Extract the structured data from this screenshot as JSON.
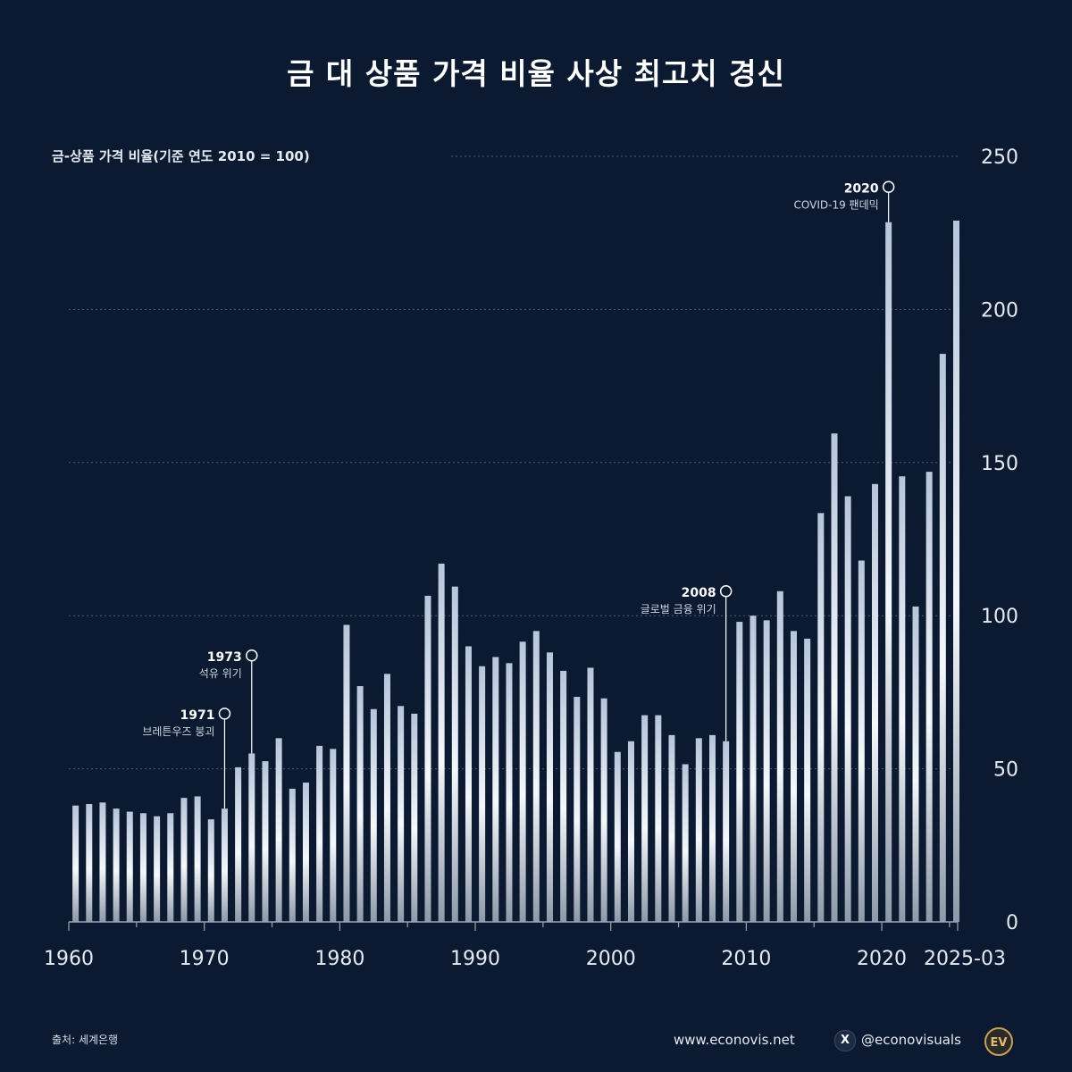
{
  "title": "금 대 상품 가격 비율 사상 최고치 경신",
  "footer": {
    "source": "출처: 세계은행",
    "site": "www.econovis.net",
    "x_icon": "X",
    "handle": "@econovisuals",
    "logo": "EV"
  },
  "colors": {
    "background": "#0b1a31",
    "bar_top": "#b9c7dc",
    "bar_mid": "#f4f7fb",
    "bar_bottom": "#8e99a8",
    "gridline": "#4b5a72",
    "axis": "#9aa4b4"
  },
  "chart_data": {
    "type": "bar",
    "ylabel": "금-상품 가격 비율(기준 연도 2010 = 100)",
    "ylim": [
      0,
      250
    ],
    "yticks": [
      "0",
      "50",
      "100",
      "150",
      "200",
      "250"
    ],
    "xticks": [
      "1960",
      "1970",
      "1980",
      "1990",
      "2000",
      "2010",
      "2020",
      "2025-03"
    ],
    "grid": true,
    "categories": [
      "1960",
      "1961",
      "1962",
      "1963",
      "1964",
      "1965",
      "1966",
      "1967",
      "1968",
      "1969",
      "1970",
      "1971",
      "1972",
      "1973",
      "1974",
      "1975",
      "1976",
      "1977",
      "1978",
      "1979",
      "1980",
      "1981",
      "1982",
      "1983",
      "1984",
      "1985",
      "1986",
      "1987",
      "1988",
      "1989",
      "1990",
      "1991",
      "1992",
      "1993",
      "1994",
      "1995",
      "1996",
      "1997",
      "1998",
      "1999",
      "2000",
      "2001",
      "2002",
      "2003",
      "2004",
      "2005",
      "2006",
      "2007",
      "2008",
      "2009",
      "2010",
      "2011",
      "2012",
      "2013",
      "2014",
      "2015",
      "2016",
      "2017",
      "2018",
      "2019",
      "2020",
      "2021",
      "2022",
      "2023",
      "2024",
      "2025-03"
    ],
    "values": [
      38,
      38.5,
      39,
      37,
      36,
      35.5,
      34.5,
      35.5,
      40.5,
      41,
      33.5,
      37,
      50.5,
      55,
      52.5,
      60,
      43.5,
      45.5,
      57.5,
      56.5,
      97,
      77,
      69.5,
      81,
      70.5,
      68,
      106.5,
      117,
      109.5,
      90,
      83.5,
      86.5,
      84.5,
      91.5,
      95,
      88,
      82,
      73.5,
      83,
      73,
      55.5,
      59,
      67.5,
      67.5,
      61,
      51.5,
      60,
      61,
      59,
      98,
      100,
      98.5,
      108,
      95,
      92.5,
      133.5,
      159.5,
      139,
      118,
      143,
      228.5,
      145.5,
      103,
      147,
      185.5,
      229
    ],
    "annotations": [
      {
        "year": "1971",
        "label": "1971",
        "text": "브레튼우즈 붕괴",
        "marker_value": 68
      },
      {
        "year": "1973",
        "label": "1973",
        "text": "석유 위기",
        "marker_value": 87
      },
      {
        "year": "2008",
        "label": "2008",
        "text": "글로벌 금융 위기",
        "marker_value": 108
      },
      {
        "year": "2020",
        "label": "2020",
        "text": "COVID-19 팬데믹",
        "marker_value": 240
      }
    ]
  }
}
